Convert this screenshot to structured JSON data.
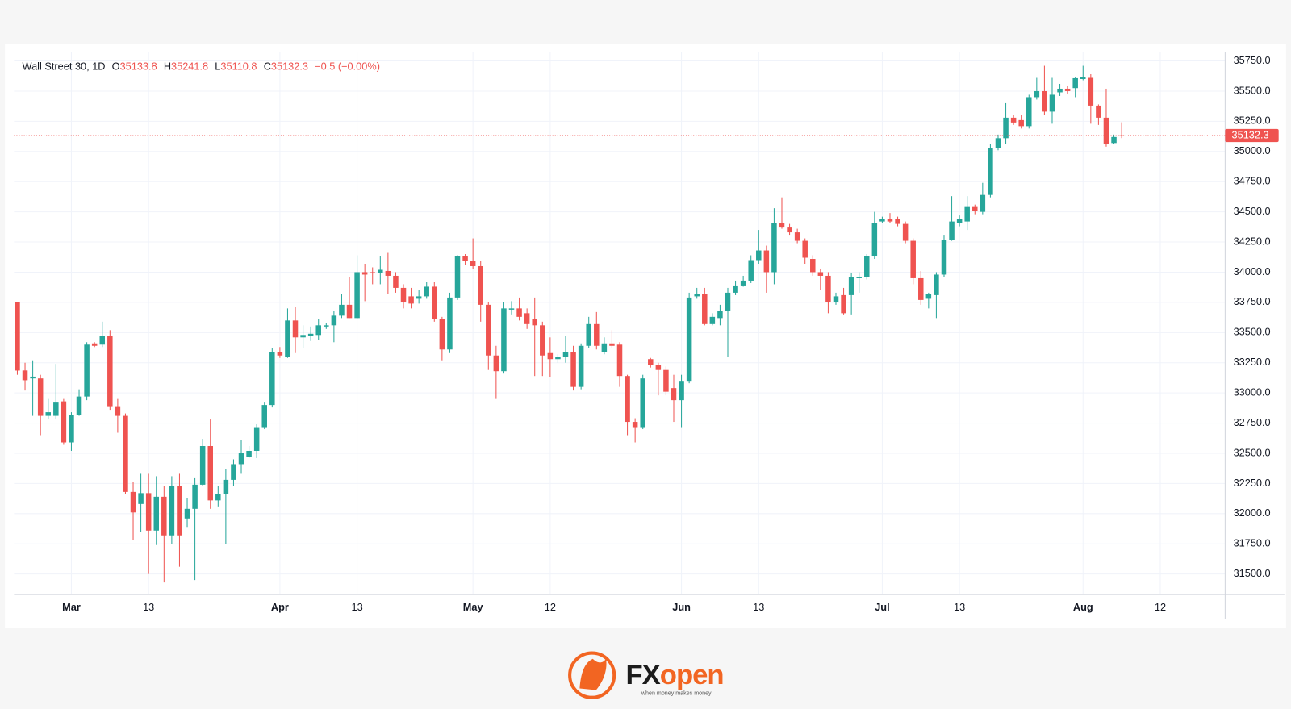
{
  "chart_data": {
    "type": "candlestick",
    "symbol": "Wall Street 30, 1D",
    "ohlc_labels": [
      "O",
      "H",
      "L",
      "C"
    ],
    "change_label": "−0.5 (−0.00%)",
    "colors": {
      "up": "#26a69a",
      "down": "#ef5350"
    },
    "grid": true,
    "ylim": [
      31330,
      35825
    ],
    "yticks": [
      {
        "value": 31500,
        "label": "31500.0"
      },
      {
        "value": 31750,
        "label": "31750.0"
      },
      {
        "value": 32000,
        "label": "32000.0"
      },
      {
        "value": 32250,
        "label": "32250.0"
      },
      {
        "value": 32500,
        "label": "32500.0"
      },
      {
        "value": 32750,
        "label": "32750.0"
      },
      {
        "value": 33000,
        "label": "33000.0"
      },
      {
        "value": 33250,
        "label": "33250.0"
      },
      {
        "value": 33500,
        "label": "33500.0"
      },
      {
        "value": 33750,
        "label": "33750.0"
      },
      {
        "value": 34000,
        "label": "34000.0"
      },
      {
        "value": 34250,
        "label": "34250.0"
      },
      {
        "value": 34500,
        "label": "34500.0"
      },
      {
        "value": 34750,
        "label": "34750.0"
      },
      {
        "value": 35000,
        "label": "35000.0"
      },
      {
        "value": 35250,
        "label": "35250.0"
      },
      {
        "value": 35500,
        "label": "35500.0"
      },
      {
        "value": 35750,
        "label": "35750.0"
      }
    ],
    "xlim": [
      -0.43,
      156.4
    ],
    "xticks": [
      {
        "value": 7,
        "label": "Mar"
      },
      {
        "value": 17,
        "label": "13"
      },
      {
        "value": 34,
        "label": "Apr"
      },
      {
        "value": 44,
        "label": "13"
      },
      {
        "value": 59,
        "label": "May"
      },
      {
        "value": 69,
        "label": "12"
      },
      {
        "value": 86,
        "label": "Jun"
      },
      {
        "value": 96,
        "label": "13"
      },
      {
        "value": 112,
        "label": "Jul"
      },
      {
        "value": 122,
        "label": "13"
      },
      {
        "value": 138,
        "label": "Aug"
      },
      {
        "value": 148,
        "label": "12"
      }
    ],
    "open": [
      33750,
      33186,
      33120,
      33120,
      32810,
      32810,
      32930,
      32590,
      32820,
      32970,
      33410,
      33400,
      33470,
      32890,
      32810,
      32180,
      32080,
      32170,
      31860,
      32140,
      31820,
      32230,
      31960,
      32040,
      32240,
      32560,
      32110,
      32160,
      32280,
      32410,
      32470,
      32520,
      32710,
      32900,
      33340,
      33300,
      33600,
      33460,
      33470,
      33480,
      33550,
      33560,
      33640,
      33730,
      33620,
      34000,
      34000,
      33990,
      34010,
      33970,
      33870,
      33800,
      33780,
      33800,
      33880,
      33610,
      33360,
      33790,
      34130,
      34090,
      34050,
      33730,
      33310,
      33180,
      33690,
      33700,
      33660,
      33610,
      33560,
      33330,
      33280,
      33300,
      33340,
      33050,
      33390,
      33570,
      33340,
      33410,
      33400,
      33140,
      32760,
      32710,
      33280,
      33230,
      33190,
      33040,
      32940,
      33100,
      33800,
      33820,
      33570,
      33620,
      33680,
      33830,
      33890,
      33930,
      34100,
      34180,
      34000,
      34410,
      34370,
      34330,
      34260,
      34110,
      34000,
      33970,
      33750,
      33810,
      33810,
      33950,
      33960,
      34130,
      34420,
      34440,
      34440,
      34400,
      34260,
      33950,
      33780,
      33810,
      33980,
      34270,
      34410,
      34420,
      34540,
      34500,
      34640,
      35030,
      35110,
      35280,
      35260,
      35210,
      35450,
      35500,
      35330,
      35490,
      35520,
      35525,
      35600,
      35610,
      35380,
      35280,
      35070,
      35133.8
    ],
    "high": [
      33750,
      33250,
      33270,
      33150,
      32950,
      33240,
      32950,
      32840,
      33030,
      33420,
      33420,
      33590,
      33520,
      32950,
      32830,
      32260,
      32330,
      32330,
      32310,
      32230,
      32310,
      32330,
      32130,
      32300,
      32620,
      32780,
      32230,
      32370,
      32450,
      32610,
      32560,
      32740,
      32920,
      33370,
      33380,
      33700,
      33710,
      33560,
      33550,
      33610,
      33580,
      33680,
      33820,
      33960,
      34140,
      34070,
      34040,
      34130,
      34160,
      34000,
      33900,
      33870,
      33850,
      33920,
      33920,
      33630,
      33830,
      34140,
      34150,
      34280,
      34090,
      33750,
      33390,
      33750,
      33760,
      33790,
      33700,
      33790,
      33590,
      33460,
      33320,
      33470,
      33390,
      33410,
      33630,
      33670,
      33460,
      33520,
      33420,
      33150,
      32790,
      33150,
      33290,
      33250,
      33220,
      33150,
      33150,
      33830,
      33870,
      33870,
      33660,
      33730,
      33870,
      33930,
      33970,
      34140,
      34350,
      34220,
      34530,
      34620,
      34400,
      34360,
      34280,
      34140,
      34030,
      34000,
      33830,
      33870,
      33990,
      34000,
      34150,
      34500,
      34460,
      34490,
      34460,
      34420,
      34280,
      34010,
      33830,
      34000,
      34310,
      34630,
      34470,
      34630,
      34560,
      34740,
      35060,
      35140,
      35400,
      35300,
      35300,
      35470,
      35610,
      35710,
      35610,
      35560,
      35540,
      35620,
      35710,
      35640,
      35390,
      35520,
      35140,
      35241.8
    ],
    "low": [
      33150,
      33020,
      32810,
      32650,
      32780,
      32780,
      32570,
      32520,
      32810,
      32940,
      33380,
      33380,
      32860,
      32670,
      32160,
      31780,
      31850,
      31500,
      31740,
      31430,
      31750,
      31560,
      31890,
      31450,
      32230,
      32040,
      32060,
      31750,
      32230,
      32330,
      32460,
      32460,
      32700,
      32880,
      33290,
      33290,
      33330,
      33370,
      33430,
      33440,
      33530,
      33420,
      33620,
      33620,
      33610,
      33760,
      33900,
      33900,
      33820,
      33830,
      33700,
      33700,
      33740,
      33780,
      33590,
      33270,
      33330,
      33770,
      34060,
      34030,
      33590,
      33190,
      32950,
      33160,
      33650,
      33600,
      33530,
      33140,
      33140,
      33130,
      33250,
      33250,
      33020,
      33030,
      33370,
      33360,
      33320,
      33370,
      33050,
      32650,
      32590,
      32700,
      33210,
      32980,
      32980,
      32760,
      32710,
      33080,
      33780,
      33560,
      33560,
      33560,
      33300,
      33810,
      33880,
      33910,
      34070,
      33830,
      33900,
      34360,
      34310,
      34240,
      34070,
      33970,
      33850,
      33660,
      33730,
      33650,
      33650,
      33830,
      33940,
      34110,
      34410,
      34410,
      34380,
      34240,
      33900,
      33730,
      33700,
      33620,
      33960,
      34260,
      34380,
      34350,
      34480,
      34480,
      34620,
      35010,
      35060,
      35220,
      35190,
      35190,
      35430,
      35300,
      35230,
      35460,
      35480,
      35450,
      35590,
      35230,
      35220,
      35040,
      35060,
      35110.8
    ],
    "close": [
      33185,
      33105,
      33135,
      32810,
      32840,
      32920,
      32590,
      32820,
      32970,
      33400,
      33390,
      33470,
      32890,
      32810,
      32180,
      32010,
      32170,
      31860,
      32140,
      31820,
      32230,
      31820,
      32040,
      32240,
      32560,
      32110,
      32160,
      32280,
      32410,
      32500,
      32520,
      32710,
      32900,
      33340,
      33310,
      33600,
      33460,
      33480,
      33490,
      33560,
      33560,
      33640,
      33730,
      33620,
      34000,
      33980,
      33990,
      34020,
      33970,
      33870,
      33750,
      33740,
      33800,
      33880,
      33610,
      33360,
      33790,
      34130,
      34090,
      34050,
      33730,
      33310,
      33180,
      33700,
      33700,
      33630,
      33570,
      33560,
      33310,
      33280,
      33300,
      33340,
      33050,
      33390,
      33570,
      33390,
      33410,
      33390,
      33140,
      32760,
      32710,
      33120,
      33230,
      33190,
      33010,
      32940,
      33100,
      33790,
      33820,
      33570,
      33630,
      33680,
      33830,
      33890,
      33930,
      34100,
      34180,
      34000,
      34410,
      34370,
      34330,
      34260,
      34120,
      34000,
      33970,
      33750,
      33800,
      33660,
      33960,
      33960,
      34130,
      34410,
      34440,
      34420,
      34400,
      34260,
      33950,
      33770,
      33820,
      33980,
      34270,
      34420,
      34440,
      34540,
      34510,
      34640,
      35030,
      35110,
      35280,
      35240,
      35210,
      35450,
      35500,
      35330,
      35470,
      35520,
      35500,
      35607,
      35620,
      35380,
      35280,
      35060,
      35120,
      35132.3
    ]
  },
  "logo": {
    "mark": "FX",
    "word": "open",
    "tagline": "when money makes money"
  }
}
